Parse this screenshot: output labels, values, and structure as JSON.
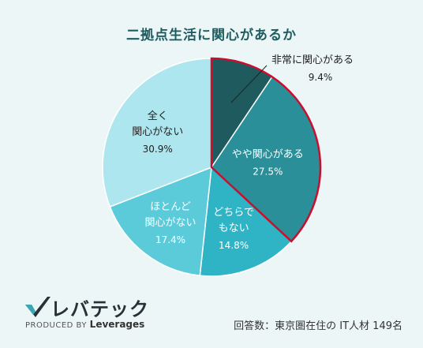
{
  "chart_data": {
    "type": "pie",
    "title": "二拠点生活に関心があるか",
    "start_angle_deg": 0,
    "direction": "clockwise",
    "slices": [
      {
        "label": "非常に関心がある",
        "value": 9.4,
        "value_text": "9.4%",
        "color": "#1e5a5e",
        "highlight": true
      },
      {
        "label": "やや関心がある",
        "value": 27.5,
        "value_text": "27.5%",
        "color": "#2a8f98",
        "highlight": true
      },
      {
        "label": "どちらでもない",
        "value": 14.8,
        "value_text": "14.8%",
        "color": "#2fb4c6",
        "highlight": false
      },
      {
        "label": "ほとんど関心がない",
        "value": 17.4,
        "value_text": "17.4%",
        "color": "#5ccbd9",
        "highlight": false
      },
      {
        "label": "全く関心がない",
        "value": 30.9,
        "value_text": "30.9%",
        "color": "#ade6ee",
        "highlight": false
      }
    ],
    "highlight_color": "#c8102e"
  },
  "logo": {
    "brand": "レバテック",
    "produced_by": "PRODUCED BY",
    "company": "Leverages"
  },
  "footnote": "回答数：東京圏在住の IT人材 149名"
}
